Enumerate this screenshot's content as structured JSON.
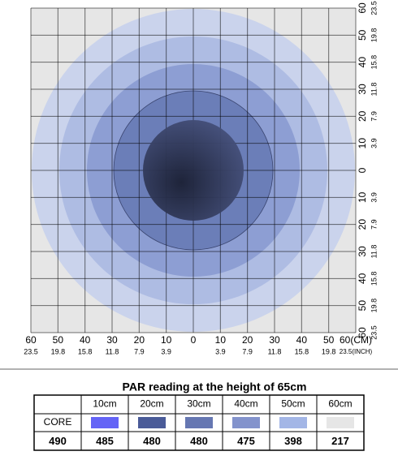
{
  "axis": {
    "bottom_cm": [
      "60",
      "50",
      "40",
      "30",
      "20",
      "10",
      "0",
      "10",
      "20",
      "30",
      "40",
      "50",
      "60(CM)"
    ],
    "bottom_inch": [
      "23.5",
      "19.8",
      "15.8",
      "11.8",
      "7.9",
      "3.9",
      null,
      "3.9",
      "7.9",
      "11.8",
      "15.8",
      "19.8",
      "23.5(INCH)"
    ],
    "right_cm": [
      "60",
      "50",
      "40",
      "30",
      "20",
      "10",
      "0",
      "10",
      "20",
      "30",
      "40",
      "50",
      "60"
    ],
    "right_inch": [
      "23.5",
      "19.8",
      "15.8",
      "11.8",
      "7.9",
      "3.9",
      null,
      "3.9",
      "7.9",
      "11.8",
      "15.8",
      "19.8",
      "23.5"
    ]
  },
  "table": {
    "title": "PAR reading at the height of 65cm",
    "header": [
      "10cm",
      "20cm",
      "30cm",
      "40cm",
      "50cm",
      "60cm"
    ],
    "row_label": "CORE",
    "colors": [
      "#6464f6",
      "#4a5b98",
      "#6677b2",
      "#8393cc",
      "#a3b6e6",
      "#e6e6e6"
    ],
    "core": 490,
    "values": [
      485,
      480,
      480,
      475,
      398,
      217
    ]
  }
}
